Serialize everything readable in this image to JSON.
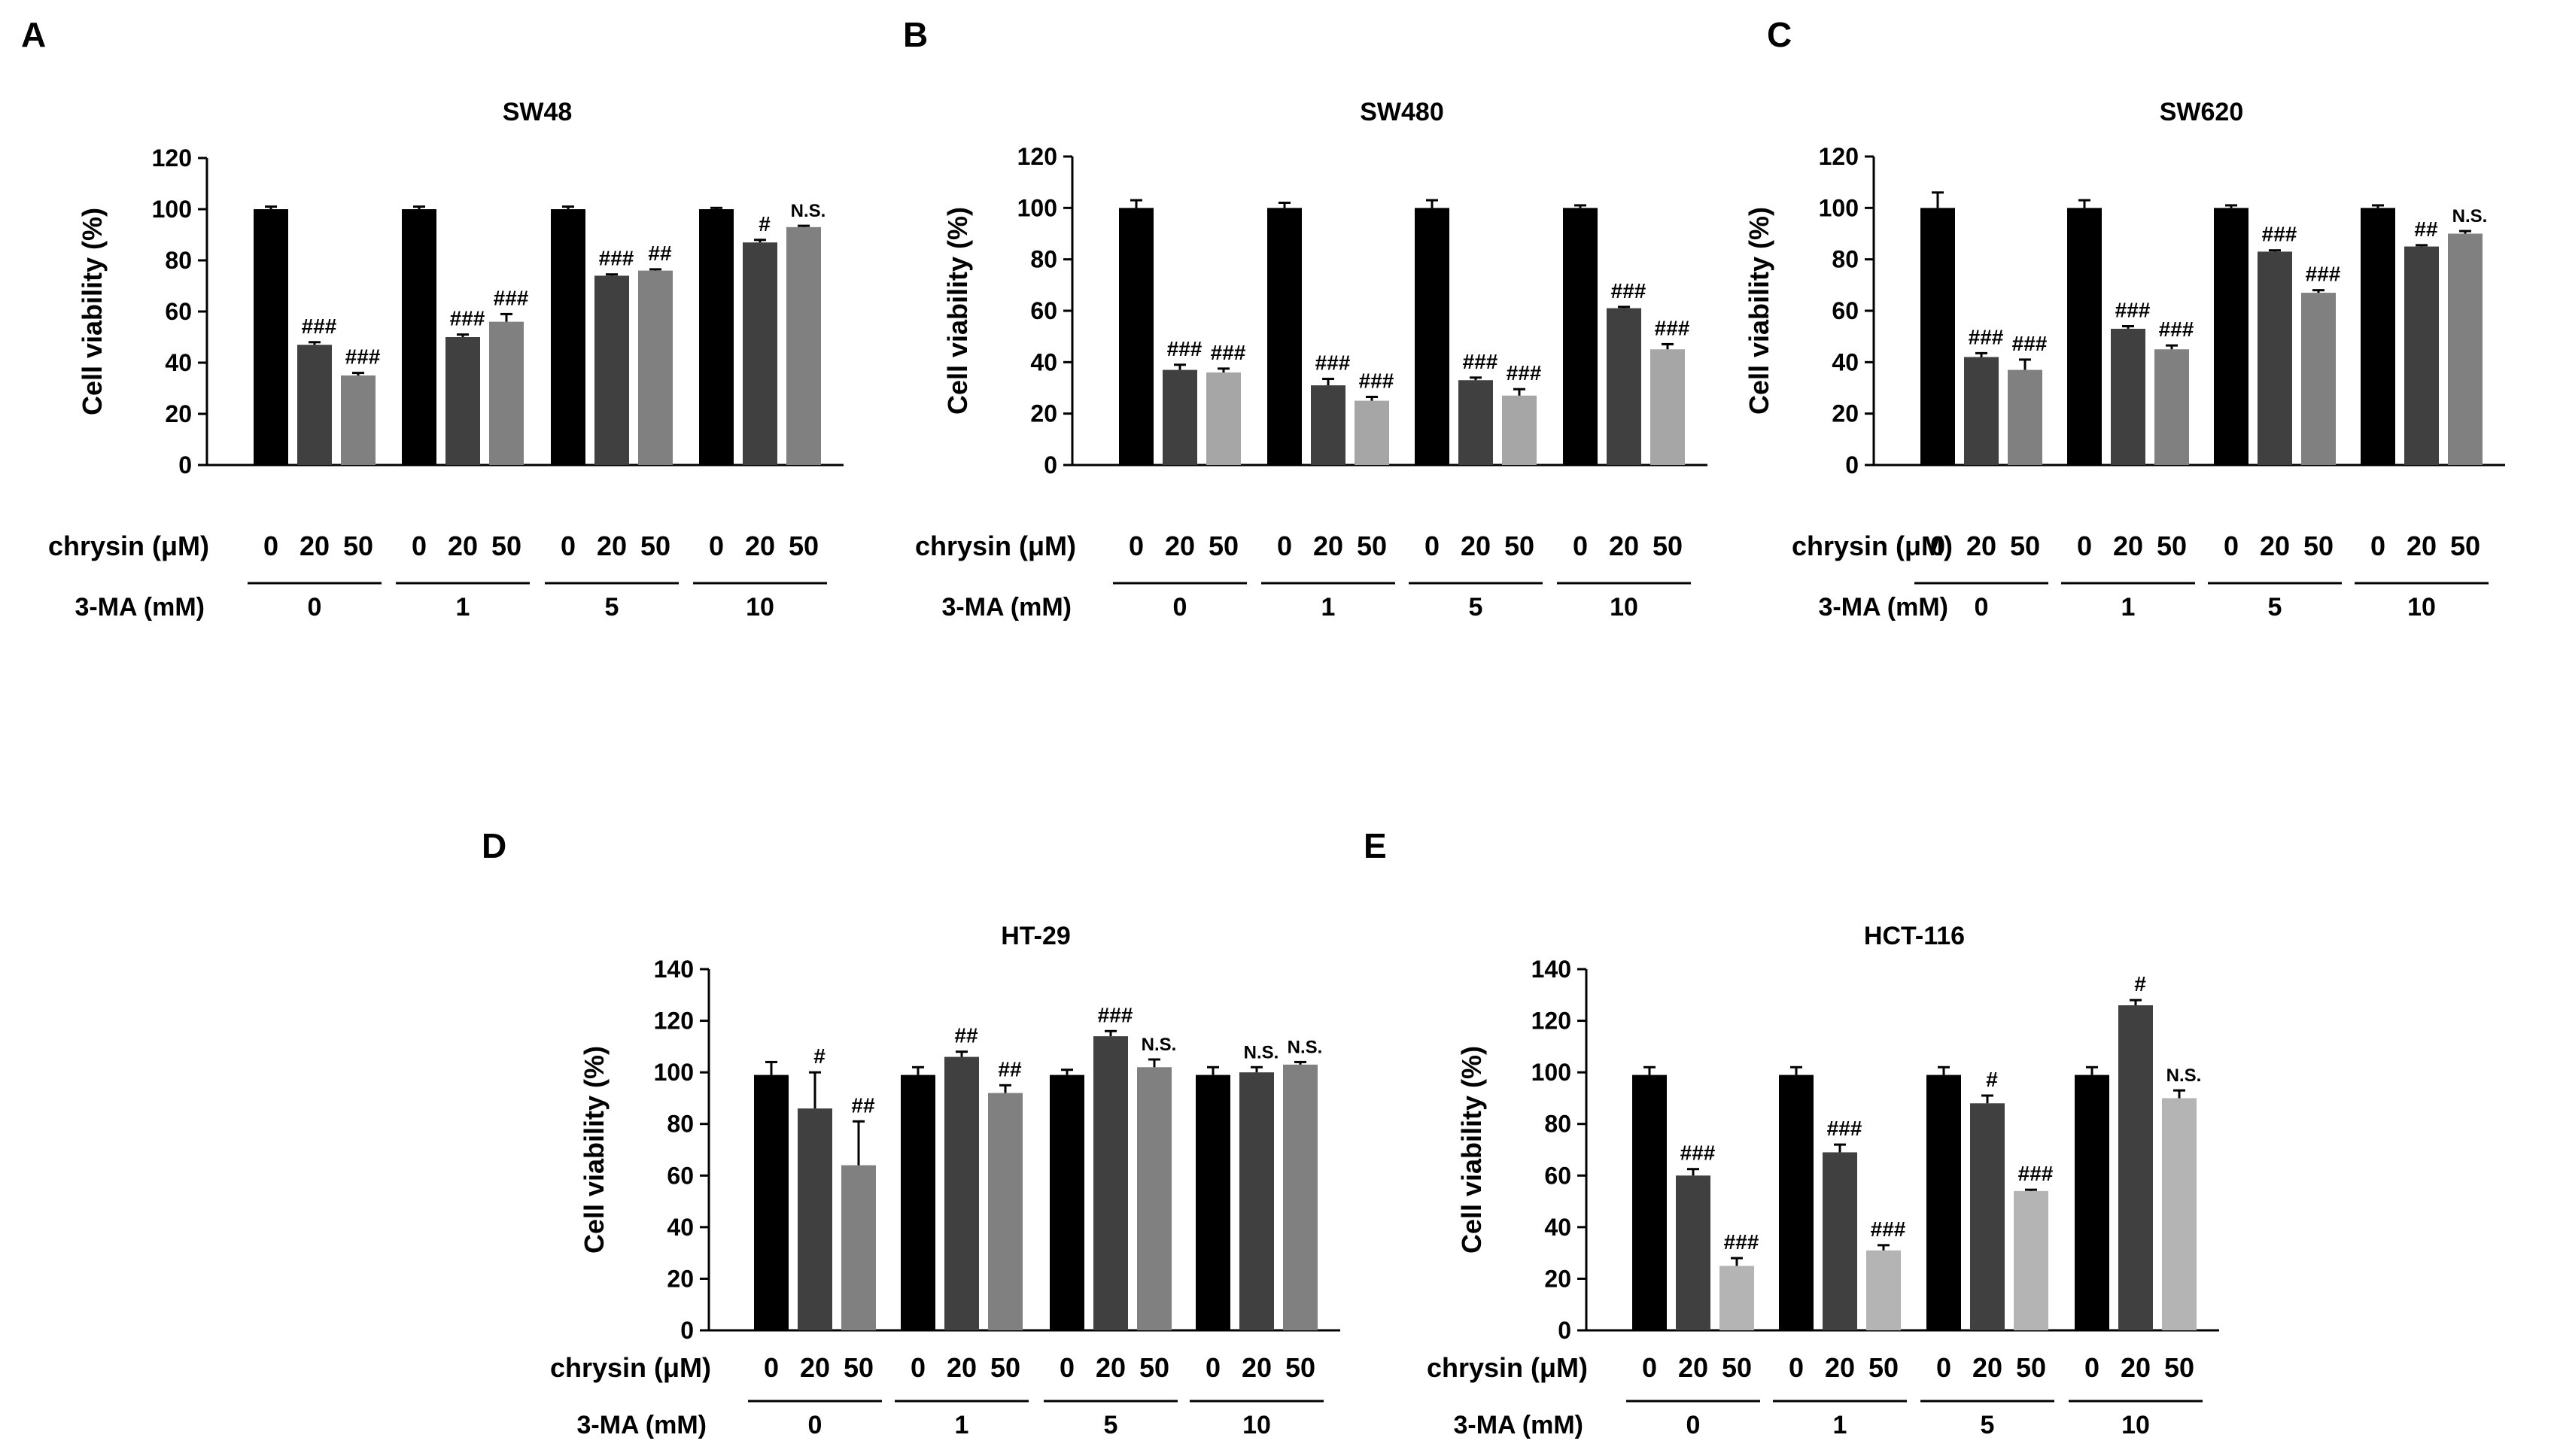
{
  "figure": {
    "chrysin_label": "chrysin (μM)",
    "ma_label": "3-MA (mM)",
    "ylabel": "Cell viability (%)",
    "bar_colors": [
      "#000000",
      "#404040",
      "#808080"
    ]
  },
  "chart_data": [
    {
      "panel": "A",
      "type": "bar",
      "title": "SW48",
      "ylabel": "Cell viability (%)",
      "ylim": [
        0,
        120
      ],
      "yticks": [
        0,
        20,
        40,
        60,
        80,
        100,
        120
      ],
      "groups": [
        "0",
        "1",
        "5",
        "10"
      ],
      "subcategories": [
        "0",
        "20",
        "50"
      ],
      "colors": [
        "#000000",
        "#404040",
        "#808080"
      ],
      "values": [
        [
          100,
          47,
          35
        ],
        [
          100,
          50,
          56
        ],
        [
          100,
          74,
          76
        ],
        [
          100,
          87,
          93
        ]
      ],
      "errors": [
        [
          1,
          1,
          1
        ],
        [
          1,
          1,
          3
        ],
        [
          1,
          0.5,
          0.5
        ],
        [
          0.5,
          1,
          0.5
        ]
      ],
      "annotations": [
        [
          "",
          "###",
          "###"
        ],
        [
          "",
          "###",
          "###"
        ],
        [
          "",
          "###",
          "##"
        ],
        [
          "",
          "#",
          "N.S."
        ]
      ]
    },
    {
      "panel": "B",
      "type": "bar",
      "title": "SW480",
      "ylabel": "Cell viability (%)",
      "ylim": [
        0,
        120
      ],
      "yticks": [
        0,
        20,
        40,
        60,
        80,
        100,
        120
      ],
      "groups": [
        "0",
        "1",
        "5",
        "10"
      ],
      "subcategories": [
        "0",
        "20",
        "50"
      ],
      "colors": [
        "#000000",
        "#404040",
        "#a6a6a6"
      ],
      "values": [
        [
          100,
          37,
          36
        ],
        [
          100,
          31,
          25
        ],
        [
          100,
          33,
          27
        ],
        [
          100,
          61,
          45
        ]
      ],
      "errors": [
        [
          3,
          2,
          1.5
        ],
        [
          2,
          2.5,
          1.5
        ],
        [
          3,
          1,
          2.5
        ],
        [
          1,
          0.5,
          2
        ]
      ],
      "annotations": [
        [
          "",
          "###",
          "###"
        ],
        [
          "",
          "###",
          "###"
        ],
        [
          "",
          "###",
          "###"
        ],
        [
          "",
          "###",
          "###"
        ]
      ]
    },
    {
      "panel": "C",
      "type": "bar",
      "title": "SW620",
      "ylabel": "Cell viability (%)",
      "ylim": [
        0,
        120
      ],
      "yticks": [
        0,
        20,
        40,
        60,
        80,
        100,
        120
      ],
      "groups": [
        "0",
        "1",
        "5",
        "10"
      ],
      "subcategories": [
        "0",
        "20",
        "50"
      ],
      "colors": [
        "#000000",
        "#404040",
        "#808080"
      ],
      "values": [
        [
          100,
          42,
          37
        ],
        [
          100,
          53,
          45
        ],
        [
          100,
          83,
          67
        ],
        [
          100,
          85,
          90
        ]
      ],
      "errors": [
        [
          6,
          1.5,
          4
        ],
        [
          3,
          1,
          1.5
        ],
        [
          1,
          0.5,
          1
        ],
        [
          1,
          0.5,
          1
        ]
      ],
      "annotations": [
        [
          "",
          "###",
          "###"
        ],
        [
          "",
          "###",
          "###"
        ],
        [
          "",
          "###",
          "###"
        ],
        [
          "",
          "##",
          "N.S."
        ]
      ]
    },
    {
      "panel": "D",
      "type": "bar",
      "title": "HT-29",
      "ylabel": "Cell viability (%)",
      "ylim": [
        0,
        140
      ],
      "yticks": [
        0,
        20,
        40,
        60,
        80,
        100,
        120,
        140
      ],
      "groups": [
        "0",
        "1",
        "5",
        "10"
      ],
      "subcategories": [
        "0",
        "20",
        "50"
      ],
      "colors": [
        "#000000",
        "#404040",
        "#808080"
      ],
      "values": [
        [
          99,
          86,
          64
        ],
        [
          99,
          106,
          92
        ],
        [
          99,
          114,
          102
        ],
        [
          99,
          100,
          103
        ]
      ],
      "errors": [
        [
          5,
          14,
          17
        ],
        [
          3,
          2,
          3
        ],
        [
          2,
          2,
          3
        ],
        [
          3,
          2,
          1
        ]
      ],
      "annotations": [
        [
          "",
          "#",
          "##"
        ],
        [
          "",
          "##",
          "##"
        ],
        [
          "",
          "###",
          "N.S."
        ],
        [
          "",
          "N.S.",
          "N.S."
        ]
      ]
    },
    {
      "panel": "E",
      "type": "bar",
      "title": "HCT-116",
      "ylabel": "Cell viability (%)",
      "ylim": [
        0,
        140
      ],
      "yticks": [
        0,
        20,
        40,
        60,
        80,
        100,
        120,
        140
      ],
      "groups": [
        "0",
        "1",
        "5",
        "10"
      ],
      "subcategories": [
        "0",
        "20",
        "50"
      ],
      "colors": [
        "#000000",
        "#404040",
        "#b4b4b4"
      ],
      "values": [
        [
          99,
          60,
          25
        ],
        [
          99,
          69,
          31
        ],
        [
          99,
          88,
          54
        ],
        [
          99,
          126,
          90
        ]
      ],
      "errors": [
        [
          3,
          2.5,
          3
        ],
        [
          3,
          3,
          2
        ],
        [
          3,
          3,
          0.5
        ],
        [
          3,
          2,
          3
        ]
      ],
      "annotations": [
        [
          "",
          "###",
          "###"
        ],
        [
          "",
          "###",
          "###"
        ],
        [
          "",
          "#",
          "###"
        ],
        [
          "",
          "#",
          "N.S."
        ]
      ]
    }
  ]
}
